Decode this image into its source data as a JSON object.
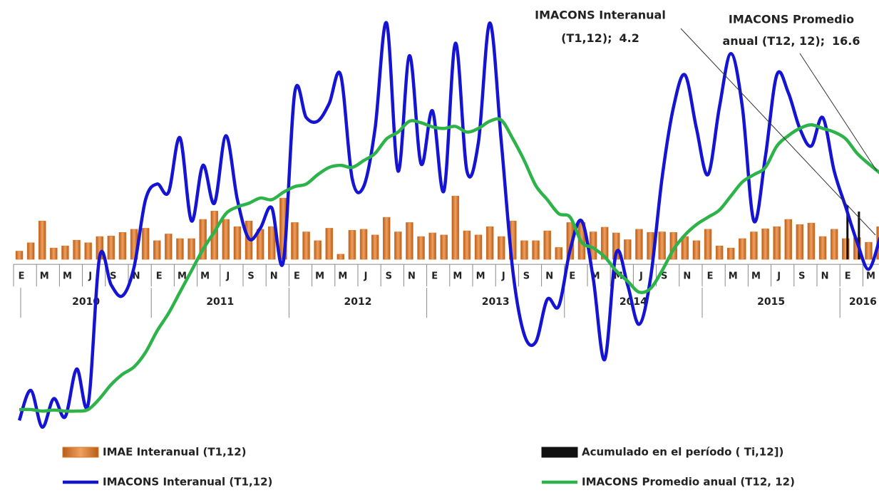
{
  "chart_data": {
    "type": "bar-line",
    "categories": [
      "E",
      null,
      "M",
      null,
      "M",
      null,
      "J",
      null,
      "S",
      null,
      "N",
      null,
      "E",
      null,
      "M",
      null,
      "M",
      null,
      "J",
      null,
      "S",
      null,
      "N",
      null,
      "E",
      null,
      "M",
      null,
      "M",
      null,
      "J",
      null,
      "S",
      null,
      "N",
      null,
      "E",
      null,
      "M",
      null,
      "M",
      null,
      "J",
      null,
      "S",
      null,
      "N",
      null,
      "E",
      null,
      "M",
      null,
      "M",
      null,
      "J",
      null,
      "S",
      null,
      "N",
      null,
      "E",
      null,
      "M",
      null,
      "M",
      null,
      "J",
      null,
      "S",
      null,
      "N",
      null,
      "E",
      null,
      "M",
      null
    ],
    "x_groups": [
      "2010",
      "2011",
      "2012",
      "2013",
      "2014",
      "2015",
      "2016"
    ],
    "ylim": [
      -35,
      48
    ],
    "series": [
      {
        "name": "IMAE Interanual (T1,12)",
        "kind": "bar",
        "color": "#d9782b",
        "values": [
          1.6,
          3.2,
          7.4,
          2.2,
          2.6,
          3.7,
          3.2,
          4.4,
          4.5,
          5.2,
          5.8,
          6.0,
          3.6,
          4.9,
          4.0,
          4.0,
          7.7,
          9.3,
          7.7,
          6.3,
          7.4,
          5.8,
          6.3,
          11.8,
          7.1,
          5.3,
          3.6,
          6.0,
          1.0,
          5.6,
          5.8,
          4.7,
          8.1,
          5.3,
          7.1,
          4.4,
          5.1,
          4.7,
          12.2,
          5.5,
          4.7,
          6.3,
          4.4,
          7.4,
          3.6,
          3.6,
          5.5,
          2.3,
          7.1,
          7.1,
          5.3,
          6.2,
          5.1,
          3.8,
          5.8,
          5.2,
          5.3,
          5.2,
          4.4,
          3.6,
          5.8,
          2.6,
          2.2,
          4.0,
          5.3,
          5.9,
          6.3,
          7.7,
          6.7,
          7.0,
          4.4,
          5.8,
          4.0,
          4.2,
          3.3,
          6.3
        ]
      },
      {
        "name": "Acumulado en el período ( Ti,12])",
        "kind": "bar",
        "color": "#111111",
        "values": [
          null,
          null,
          null,
          null,
          null,
          null,
          null,
          null,
          null,
          null,
          null,
          null,
          null,
          null,
          null,
          null,
          null,
          null,
          null,
          null,
          null,
          null,
          null,
          null,
          null,
          null,
          null,
          null,
          null,
          null,
          null,
          null,
          null,
          null,
          null,
          null,
          null,
          null,
          null,
          null,
          null,
          null,
          null,
          null,
          null,
          null,
          null,
          null,
          null,
          null,
          null,
          null,
          null,
          null,
          null,
          null,
          null,
          null,
          null,
          null,
          null,
          null,
          null,
          null,
          null,
          null,
          null,
          null,
          null,
          null,
          null,
          null,
          10.4,
          9.2,
          null,
          null
        ]
      },
      {
        "name": "IMACONS Interanual (T1,12)",
        "kind": "line",
        "color": "#1414d2",
        "values": [
          -31.0,
          -25.2,
          -32.3,
          -26.8,
          -30.3,
          -21.1,
          -27.9,
          0.5,
          -4.9,
          -7.0,
          -1.5,
          11.5,
          14.5,
          12.9,
          23.4,
          7.4,
          18.1,
          10.8,
          23.8,
          11.5,
          4.0,
          6.0,
          9.9,
          -0.5,
          32.1,
          27.3,
          26.6,
          30.0,
          35.5,
          15.6,
          14.0,
          25.2,
          45.5,
          17.0,
          39.2,
          18.4,
          28.6,
          13.2,
          41.6,
          17.0,
          22.5,
          45.5,
          22.5,
          -2.2,
          -14.5,
          -15.9,
          -7.7,
          -9.0,
          1.9,
          7.4,
          -3.6,
          -19.3,
          1.2,
          -4.9,
          -12.5,
          -3.6,
          15.6,
          29.3,
          35.5,
          25.2,
          16.3,
          29.3,
          39.6,
          29.3,
          7.4,
          19.7,
          35.5,
          32.1,
          25.2,
          21.8,
          27.3,
          17.0,
          10.1,
          3.3,
          -1.9,
          4.2
        ]
      },
      {
        "name": "IMACONS Promedio anual (T12, 12)",
        "kind": "line",
        "color": "#2db34a",
        "values": [
          -28.9,
          -28.9,
          -29.2,
          -29.0,
          -29.2,
          -29.2,
          -28.9,
          -26.8,
          -24.1,
          -22.1,
          -20.7,
          -17.9,
          -13.8,
          -10.4,
          -6.3,
          -2.2,
          1.9,
          5.3,
          8.8,
          10.1,
          10.8,
          11.8,
          11.5,
          12.9,
          14.0,
          14.5,
          16.3,
          17.7,
          18.1,
          17.7,
          19.0,
          20.4,
          23.2,
          24.5,
          26.6,
          26.3,
          25.5,
          25.2,
          25.6,
          24.5,
          25.2,
          26.6,
          26.8,
          23.2,
          19.0,
          14.2,
          11.5,
          8.8,
          8.1,
          3.3,
          2.2,
          0.5,
          -2.2,
          -4.2,
          -6.3,
          -5.6,
          -2.2,
          1.9,
          4.7,
          6.7,
          8.1,
          9.5,
          12.2,
          14.9,
          16.3,
          17.7,
          21.8,
          23.8,
          25.2,
          25.9,
          25.2,
          24.5,
          23.2,
          20.4,
          18.4,
          16.6
        ]
      }
    ],
    "annotations": [
      {
        "line1": "IMACONS Interanual",
        "line2": "(T1,12);",
        "value": 4.2
      },
      {
        "line1": "IMACONS Promedio",
        "line2": "anual (T12, 12);",
        "value": 16.6
      }
    ]
  }
}
